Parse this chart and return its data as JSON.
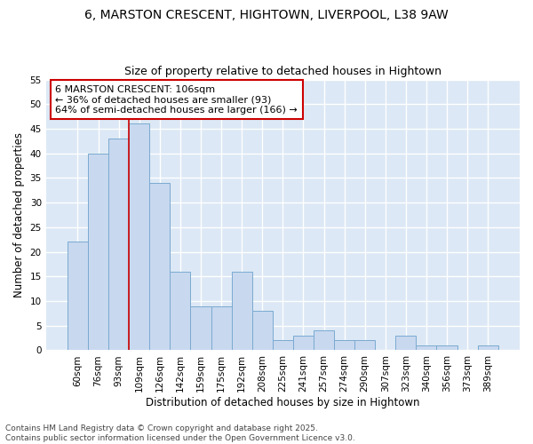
{
  "title1": "6, MARSTON CRESCENT, HIGHTOWN, LIVERPOOL, L38 9AW",
  "title2": "Size of property relative to detached houses in Hightown",
  "xlabel": "Distribution of detached houses by size in Hightown",
  "ylabel": "Number of detached properties",
  "categories": [
    "60sqm",
    "76sqm",
    "93sqm",
    "109sqm",
    "126sqm",
    "142sqm",
    "159sqm",
    "175sqm",
    "192sqm",
    "208sqm",
    "225sqm",
    "241sqm",
    "257sqm",
    "274sqm",
    "290sqm",
    "307sqm",
    "323sqm",
    "340sqm",
    "356sqm",
    "373sqm",
    "389sqm"
  ],
  "values": [
    22,
    40,
    43,
    46,
    34,
    16,
    9,
    9,
    16,
    8,
    2,
    3,
    4,
    2,
    2,
    0,
    3,
    1,
    1,
    0,
    1
  ],
  "bar_color": "#c8d8ef",
  "bar_edge_color": "#7aaad0",
  "vline_x_index": 3,
  "vline_color": "#cc0000",
  "annotation_line1": "6 MARSTON CRESCENT: 106sqm",
  "annotation_line2": "← 36% of detached houses are smaller (93)",
  "annotation_line3": "64% of semi-detached houses are larger (166) →",
  "annotation_box_color": "#cc0000",
  "ylim_max": 55,
  "yticks": [
    0,
    5,
    10,
    15,
    20,
    25,
    30,
    35,
    40,
    45,
    50,
    55
  ],
  "background_color": "#dce8f5",
  "grid_color": "#ffffff",
  "footer": "Contains HM Land Registry data © Crown copyright and database right 2025.\nContains public sector information licensed under the Open Government Licence v3.0.",
  "title_fontsize": 10,
  "subtitle_fontsize": 9,
  "annotation_fontsize": 8,
  "axis_label_fontsize": 8.5,
  "tick_fontsize": 7.5,
  "footer_fontsize": 6.5
}
